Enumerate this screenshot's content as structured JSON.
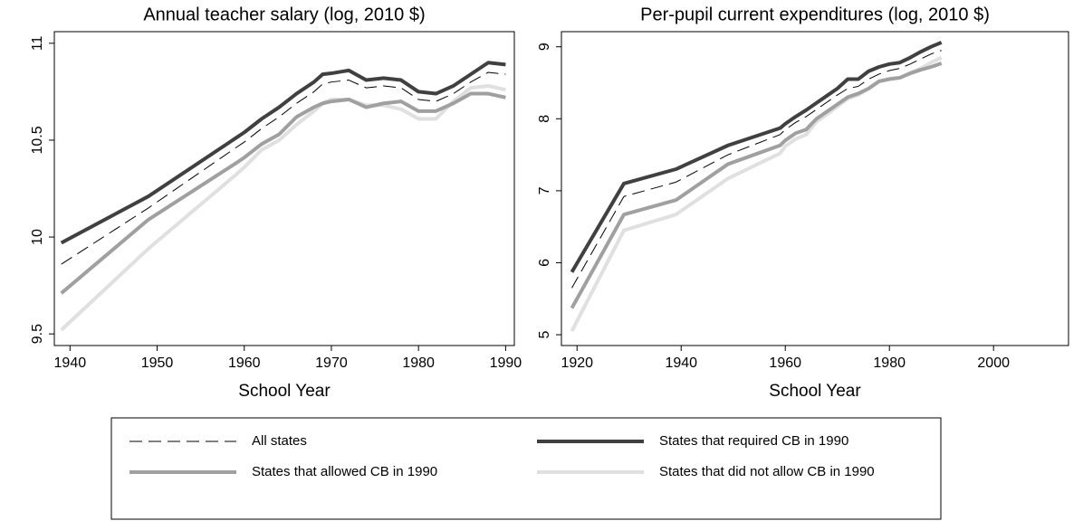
{
  "chart_data": [
    {
      "type": "line",
      "title": "Annual teacher salary (log, 2010 $)",
      "x_label": "School Year",
      "x": [
        1939,
        1949,
        1959,
        1960,
        1962,
        1964,
        1966,
        1968,
        1969,
        1970,
        1972,
        1974,
        1976,
        1978,
        1980,
        1982,
        1984,
        1986,
        1988,
        1990
      ],
      "xlim": [
        1938.2,
        1991
      ],
      "xticks": [
        1940,
        1950,
        1960,
        1970,
        1980,
        1990
      ],
      "ylim": [
        9.44,
        11.06
      ],
      "yticks": [
        9.5,
        10,
        10.5,
        11
      ],
      "series": [
        {
          "name": "All states",
          "color": "#000000",
          "dashed": true,
          "width": 1,
          "values": [
            9.86,
            10.15,
            10.46,
            10.49,
            10.56,
            10.62,
            10.69,
            10.75,
            10.79,
            10.8,
            10.81,
            10.77,
            10.78,
            10.77,
            10.71,
            10.7,
            10.74,
            10.8,
            10.85,
            10.84
          ]
        },
        {
          "name": "States that required CB in 1990",
          "color": "#404040",
          "dashed": false,
          "width": 4,
          "values": [
            9.97,
            10.21,
            10.51,
            10.54,
            10.61,
            10.67,
            10.74,
            10.8,
            10.84,
            10.845,
            10.86,
            10.81,
            10.82,
            10.81,
            10.75,
            10.74,
            10.78,
            10.84,
            10.9,
            10.89
          ]
        },
        {
          "name": "States that allowed CB in 1990",
          "color": "#a0a0a0",
          "dashed": false,
          "width": 4,
          "values": [
            9.71,
            10.09,
            10.38,
            10.41,
            10.48,
            10.53,
            10.62,
            10.67,
            10.69,
            10.7,
            10.71,
            10.67,
            10.69,
            10.7,
            10.65,
            10.65,
            10.69,
            10.74,
            10.74,
            10.72
          ]
        },
        {
          "name": "States that did not allow CB in 1990",
          "color": "#e0e0e0",
          "dashed": false,
          "width": 4,
          "values": [
            9.52,
            9.94,
            10.32,
            10.36,
            10.45,
            10.5,
            10.58,
            10.65,
            10.69,
            10.71,
            10.71,
            10.68,
            10.68,
            10.66,
            10.61,
            10.61,
            10.7,
            10.77,
            10.78,
            10.76
          ]
        }
      ]
    },
    {
      "type": "line",
      "title": "Per-pupil current expenditures (log, 2010 $)",
      "x_label": "School Year",
      "x": [
        1919,
        1929,
        1939,
        1949,
        1959,
        1960,
        1962,
        1964,
        1966,
        1968,
        1970,
        1972,
        1974,
        1976,
        1978,
        1980,
        1982,
        1984,
        1986,
        1988,
        1990
      ],
      "xlim": [
        1917,
        2014.4
      ],
      "xticks": [
        1920,
        1940,
        1960,
        1980,
        2000
      ],
      "ylim": [
        4.85,
        9.21
      ],
      "yticks": [
        5,
        6,
        7,
        8,
        9
      ],
      "series": [
        {
          "color": "#000000",
          "dashed": true,
          "width": 1,
          "values": [
            5.65,
            6.92,
            7.12,
            7.5,
            7.78,
            7.85,
            7.95,
            8.03,
            8.13,
            8.23,
            8.33,
            8.42,
            8.45,
            8.55,
            8.62,
            8.67,
            8.7,
            8.76,
            8.83,
            8.9,
            8.95
          ]
        },
        {
          "color": "#404040",
          "dashed": false,
          "width": 4,
          "values": [
            5.87,
            7.1,
            7.3,
            7.63,
            7.87,
            7.93,
            8.03,
            8.12,
            8.22,
            8.32,
            8.42,
            8.55,
            8.55,
            8.66,
            8.72,
            8.76,
            8.78,
            8.85,
            8.93,
            9.0,
            9.06
          ]
        },
        {
          "color": "#a0a0a0",
          "dashed": false,
          "width": 4,
          "values": [
            5.37,
            6.67,
            6.87,
            7.37,
            7.63,
            7.7,
            7.8,
            7.85,
            8.0,
            8.1,
            8.2,
            8.3,
            8.35,
            8.42,
            8.52,
            8.55,
            8.57,
            8.63,
            8.68,
            8.72,
            8.77
          ]
        },
        {
          "color": "#e0e0e0",
          "dashed": false,
          "width": 4,
          "values": [
            5.05,
            6.45,
            6.67,
            7.17,
            7.52,
            7.62,
            7.72,
            7.78,
            7.96,
            8.06,
            8.17,
            8.28,
            8.33,
            8.42,
            8.52,
            8.56,
            8.57,
            8.64,
            8.7,
            8.78,
            8.85
          ]
        }
      ]
    }
  ]
}
